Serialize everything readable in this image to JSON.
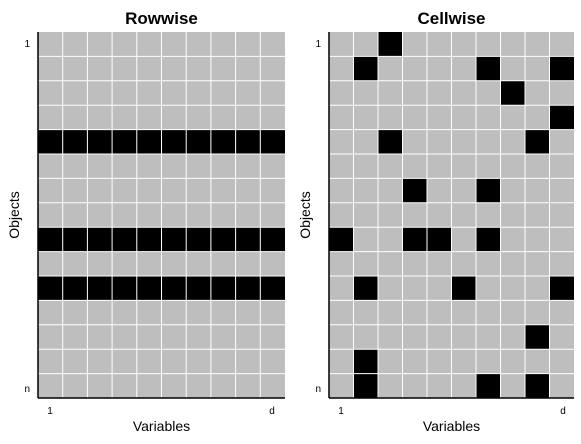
{
  "chart_data": [
    {
      "type": "heatmap",
      "title": "Rowwise",
      "xlabel": "Variables",
      "ylabel": "Objects",
      "x_tick_labels": [
        "1",
        "d"
      ],
      "y_tick_labels": [
        "1",
        "n"
      ],
      "n_rows": 15,
      "n_cols": 10,
      "cell_color": "#bebebe",
      "missing_color": "#000000",
      "grid_color": "#ffffff",
      "missing_cells": [
        [
          4,
          0
        ],
        [
          4,
          1
        ],
        [
          4,
          2
        ],
        [
          4,
          3
        ],
        [
          4,
          4
        ],
        [
          4,
          5
        ],
        [
          4,
          6
        ],
        [
          4,
          7
        ],
        [
          4,
          8
        ],
        [
          4,
          9
        ],
        [
          8,
          0
        ],
        [
          8,
          1
        ],
        [
          8,
          2
        ],
        [
          8,
          3
        ],
        [
          8,
          4
        ],
        [
          8,
          5
        ],
        [
          8,
          6
        ],
        [
          8,
          7
        ],
        [
          8,
          8
        ],
        [
          8,
          9
        ],
        [
          10,
          0
        ],
        [
          10,
          1
        ],
        [
          10,
          2
        ],
        [
          10,
          3
        ],
        [
          10,
          4
        ],
        [
          10,
          5
        ],
        [
          10,
          6
        ],
        [
          10,
          7
        ],
        [
          10,
          8
        ],
        [
          10,
          9
        ]
      ]
    },
    {
      "type": "heatmap",
      "title": "Cellwise",
      "xlabel": "Variables",
      "ylabel": "Objects",
      "x_tick_labels": [
        "1",
        "d"
      ],
      "y_tick_labels": [
        "1",
        "n"
      ],
      "n_rows": 15,
      "n_cols": 10,
      "cell_color": "#bebebe",
      "missing_color": "#000000",
      "grid_color": "#ffffff",
      "missing_cells": [
        [
          0,
          2
        ],
        [
          1,
          1
        ],
        [
          1,
          6
        ],
        [
          1,
          9
        ],
        [
          2,
          7
        ],
        [
          3,
          9
        ],
        [
          4,
          2
        ],
        [
          4,
          8
        ],
        [
          6,
          3
        ],
        [
          6,
          6
        ],
        [
          8,
          0
        ],
        [
          8,
          3
        ],
        [
          8,
          4
        ],
        [
          8,
          6
        ],
        [
          10,
          1
        ],
        [
          10,
          5
        ],
        [
          10,
          9
        ],
        [
          12,
          8
        ],
        [
          13,
          1
        ],
        [
          14,
          1
        ],
        [
          14,
          6
        ],
        [
          14,
          8
        ]
      ]
    }
  ]
}
